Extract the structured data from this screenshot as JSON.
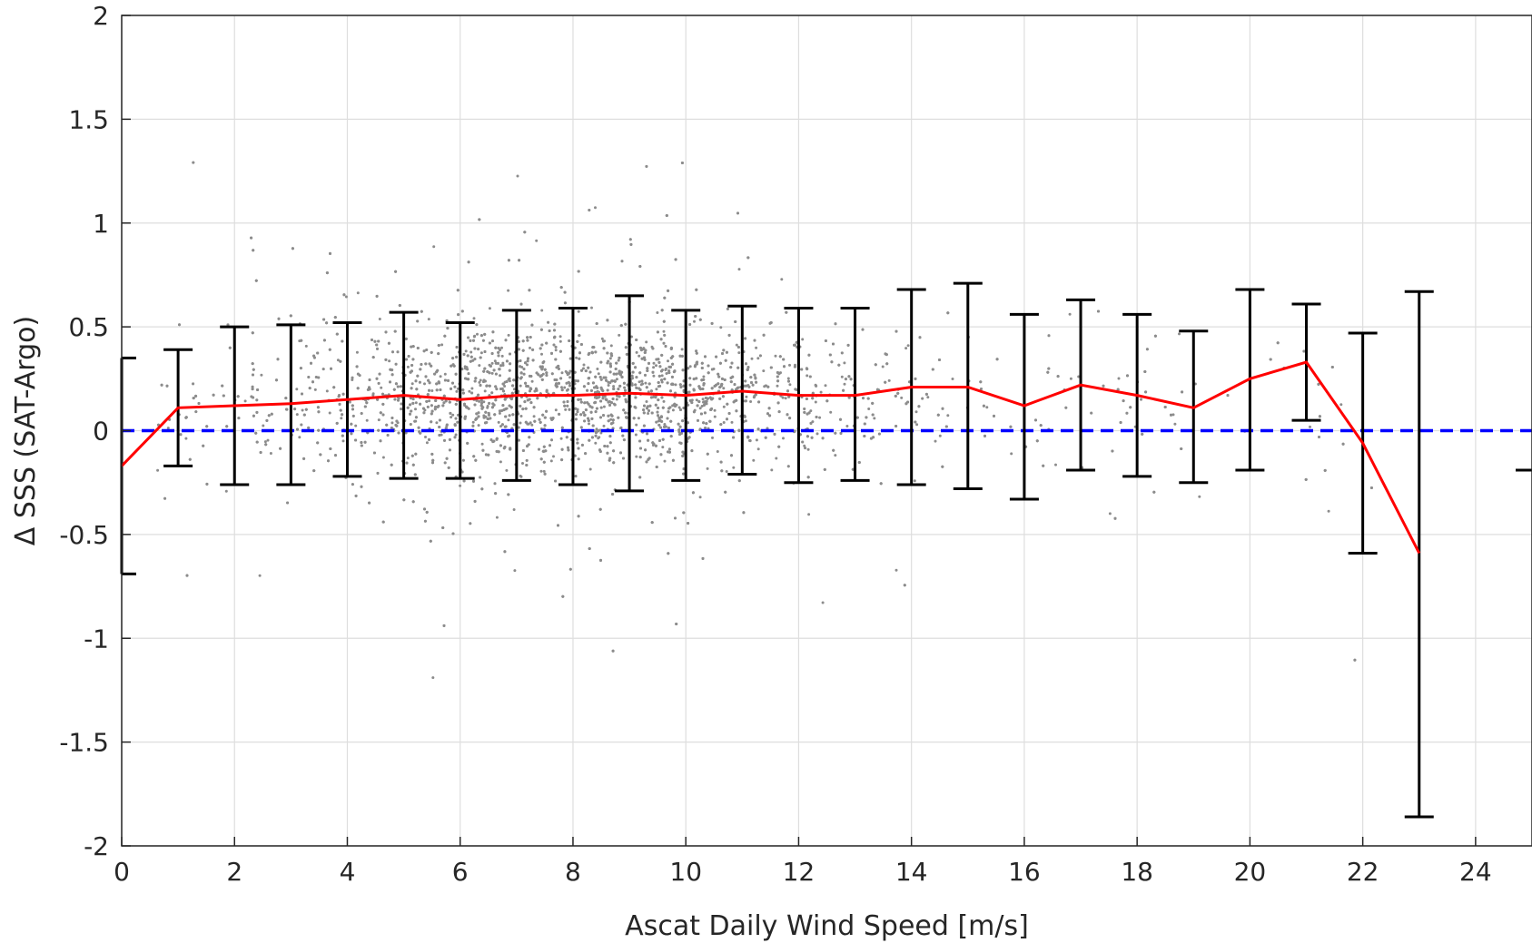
{
  "chart_data": {
    "type": "scatter",
    "title": "",
    "xlabel": "Ascat Daily Wind Speed [m/s]",
    "ylabel": "Δ SSS (SAT-Argo)",
    "xlim": [
      0,
      25
    ],
    "ylim": [
      -2,
      2
    ],
    "xticks": [
      "0",
      "2",
      "4",
      "6",
      "8",
      "10",
      "12",
      "14",
      "16",
      "18",
      "20",
      "22",
      "24"
    ],
    "yticks": [
      "2",
      "1.5",
      "1",
      "0.5",
      "0",
      "-0.5",
      "-1",
      "-1.5",
      "-2"
    ],
    "xtick_values": [
      0,
      2,
      4,
      6,
      8,
      10,
      12,
      14,
      16,
      18,
      20,
      22,
      24
    ],
    "ytick_values": [
      2,
      1.5,
      1,
      0.5,
      0,
      -0.5,
      -1,
      -1.5,
      -2
    ],
    "grid": true,
    "colors": {
      "scatter": "#8c8c8c",
      "mean_line": "#ff0000",
      "zero_line": "#0000ff",
      "error_bars": "#000000"
    },
    "scatter_description": "dense gray point cloud, centered around 0.1-0.2, most points between -0.5 and 0.7, densest between 4 and 12 m/s",
    "series": [
      {
        "name": "mean",
        "style": "red line with black error bars",
        "x": [
          0,
          1,
          2,
          3,
          4,
          5,
          6,
          7,
          8,
          9,
          10,
          11,
          12,
          13,
          14,
          15,
          16,
          17,
          18,
          19,
          20,
          21,
          22,
          23
        ],
        "y": [
          -0.17,
          0.11,
          0.12,
          0.13,
          0.15,
          0.17,
          0.15,
          0.17,
          0.17,
          0.18,
          0.17,
          0.19,
          0.17,
          0.17,
          0.21,
          0.21,
          0.12,
          0.22,
          0.17,
          0.11,
          0.25,
          0.33,
          -0.06,
          -0.59
        ],
        "err_low": [
          -0.69,
          -0.17,
          -0.26,
          -0.26,
          -0.22,
          -0.23,
          -0.23,
          -0.24,
          -0.26,
          -0.29,
          -0.24,
          -0.21,
          -0.25,
          -0.24,
          -0.26,
          -0.28,
          -0.33,
          -0.19,
          -0.22,
          -0.25,
          -0.19,
          0.05,
          -0.59,
          -1.86
        ],
        "err_high": [
          0.35,
          0.39,
          0.5,
          0.51,
          0.52,
          0.57,
          0.52,
          0.58,
          0.59,
          0.65,
          0.58,
          0.6,
          0.59,
          0.59,
          0.68,
          0.71,
          0.56,
          0.63,
          0.56,
          0.48,
          0.68,
          0.61,
          0.47,
          0.67
        ]
      },
      {
        "name": "zero reference",
        "style": "blue dashed line",
        "y": 0
      }
    ]
  }
}
